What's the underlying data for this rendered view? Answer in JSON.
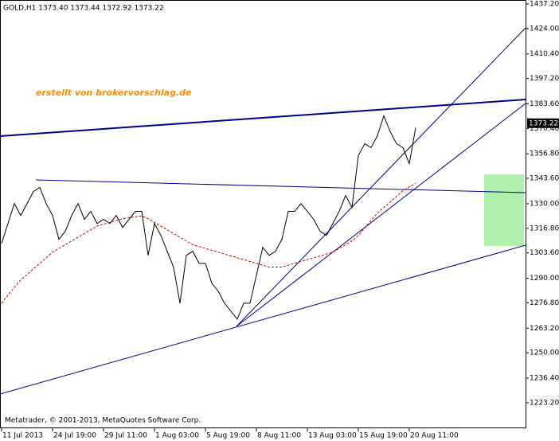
{
  "chart_data": {
    "type": "line",
    "title": "GOLD,H1  1373.40 1373.44 1372.92 1373.22",
    "annotation": "erstellt von brokervorschlag.de",
    "footer": "Metatrader, © 2001-2013, MetaQuotes Software Corp.",
    "last_price": {
      "value": 1373.22,
      "label": "1373.22"
    },
    "categories": [
      "11 Jul 2013",
      null,
      null,
      null,
      null,
      null,
      null,
      null,
      "24 Jul 19:00",
      null,
      null,
      null,
      null,
      null,
      null,
      null,
      "29 Jul 11:00",
      null,
      null,
      null,
      null,
      null,
      null,
      null,
      "1 Aug 03:00",
      null,
      null,
      null,
      null,
      null,
      null,
      null,
      "5 Aug 19:00",
      null,
      null,
      null,
      null,
      null,
      null,
      null,
      "8 Aug 11:00",
      null,
      null,
      null,
      null,
      null,
      null,
      null,
      "13 Aug 03:00",
      null,
      null,
      null,
      null,
      null,
      null,
      null,
      "15 Aug 19:00",
      null,
      null,
      null,
      null,
      null,
      null,
      null,
      "20 Aug 11:00",
      null
    ],
    "series": [
      {
        "color": "#000000",
        "values": [
          1308.7,
          1319.4,
          1330.1,
          1323.7,
          1330.1,
          1336.6,
          1338.7,
          1330.1,
          1323.7,
          1310.9,
          1315.2,
          1323.7,
          1330.1,
          1321.6,
          1325.9,
          1319.4,
          1321.6,
          1319.4,
          1323.7,
          1317.3,
          1321.6,
          1325.9,
          1325.9,
          1302.3,
          1319.4,
          1313.0,
          1304.5,
          1295.9,
          1276.6,
          1302.3,
          1304.5,
          1298.0,
          1298.0,
          1287.3,
          1283.1,
          1276.6,
          1272.3,
          1268.1,
          1276.6,
          1276.6,
          1291.6,
          1306.6,
          1302.3,
          1304.5,
          1310.9,
          1325.9,
          1325.9,
          1330.1,
          1325.9,
          1321.6,
          1315.2,
          1313.0,
          1319.4,
          1325.9,
          1334.4,
          1328.0,
          1355.8,
          1362.2,
          1360.1,
          1366.5,
          1377.2,
          1368.7,
          1362.2,
          1360.1,
          1351.5,
          1370.9
        ]
      },
      {
        "color": "#cc0000",
        "dashed": true,
        "values": [
          1276.6,
          1281,
          1285,
          1289,
          1292,
          1295,
          1298,
          1301,
          1304,
          1306,
          1308,
          1310,
          1312,
          1314,
          1316,
          1318,
          1319,
          1320,
          1321,
          1322,
          1322.5,
          1323,
          1323.5,
          1322,
          1320,
          1318,
          1316,
          1314,
          1312,
          1310,
          1308,
          1307,
          1306,
          1305,
          1304,
          1303,
          1302,
          1301,
          1300,
          1299,
          1298,
          1297,
          1296,
          1296,
          1296,
          1297,
          1298,
          1299,
          1300,
          1301,
          1302,
          1303,
          1304,
          1306,
          1308,
          1310,
          1313,
          1317,
          1321,
          1325,
          1328,
          1331,
          1334,
          1337,
          1339,
          1341
        ]
      }
    ],
    "ylim": [
      1209.5,
      1439.34
    ],
    "yticks": [
      {
        "value": 1437.2,
        "label": "1437.20"
      },
      {
        "value": 1424,
        "label": "1424.00"
      },
      {
        "value": 1410.4,
        "label": "1410.40"
      },
      {
        "value": 1397.2,
        "label": "1397.20"
      },
      {
        "value": 1383.6,
        "label": "1383.60"
      },
      {
        "value": 1370.4,
        "label": "1370.40"
      },
      {
        "value": 1356.8,
        "label": "1356.80"
      },
      {
        "value": 1343.6,
        "label": "1343.60"
      },
      {
        "value": 1330,
        "label": "1330.00"
      },
      {
        "value": 1316.8,
        "label": "1316.80"
      },
      {
        "value": 1303.6,
        "label": "1303.60"
      },
      {
        "value": 1290,
        "label": "1290.00"
      },
      {
        "value": 1276.8,
        "label": "1276.80"
      },
      {
        "value": 1263.2,
        "label": "1263.20"
      },
      {
        "value": 1250,
        "label": "1250.00"
      },
      {
        "value": 1236.4,
        "label": "1236.40"
      },
      {
        "value": 1223.2,
        "label": "1223.20"
      }
    ]
  }
}
